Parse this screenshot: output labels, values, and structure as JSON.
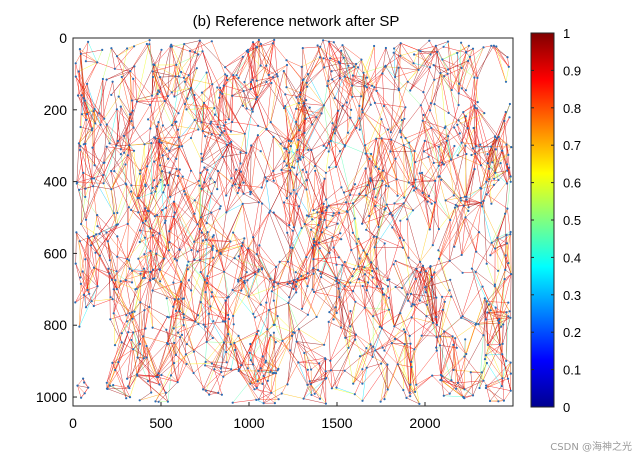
{
  "chart_data": {
    "type": "scatter",
    "title": "(b) Reference network after SP",
    "subtype": "network graph (nodes + weighted edges)",
    "xlim": [
      0,
      2500
    ],
    "ylim": [
      0,
      1025
    ],
    "y_axis_direction": "reversed",
    "x_ticks": [
      0,
      500,
      1000,
      1500,
      2000
    ],
    "x_tick_labels": [
      "0",
      "500",
      "1000",
      "1500",
      "2000"
    ],
    "y_ticks": [
      0,
      200,
      400,
      600,
      800,
      1000
    ],
    "y_tick_labels": [
      "0",
      "200",
      "400",
      "600",
      "800",
      "1000"
    ],
    "node_color": "#2b6cb3",
    "edge_colormap": "jet",
    "colorbar": {
      "range": [
        0,
        1
      ],
      "ticks": [
        0,
        0.1,
        0.2,
        0.3,
        0.4,
        0.5,
        0.6,
        0.7,
        0.8,
        0.9,
        1
      ],
      "tick_labels": [
        "0",
        "0.1",
        "0.2",
        "0.3",
        "0.4",
        "0.5",
        "0.6",
        "0.7",
        "0.8",
        "0.9",
        "1"
      ],
      "stops": [
        "#00008f",
        "#0000ff",
        "#0080ff",
        "#00ffff",
        "#80ff80",
        "#ffff00",
        "#ff8000",
        "#ff0000",
        "#800000"
      ]
    },
    "holes": [
      {
        "x": 1450,
        "y": 670,
        "r": 35
      },
      {
        "x": 2380,
        "y": 120,
        "r": 80
      },
      {
        "x": 120,
        "y": 850,
        "r": 90
      },
      {
        "x": 1100,
        "y": 550,
        "r": 40
      },
      {
        "x": 1680,
        "y": 250,
        "r": 45
      },
      {
        "x": 2200,
        "y": 380,
        "r": 50
      },
      {
        "x": 640,
        "y": 960,
        "r": 45
      },
      {
        "x": 1250,
        "y": 1000,
        "r": 40
      },
      {
        "x": 300,
        "y": 150,
        "r": 35
      },
      {
        "x": 2280,
        "y": 700,
        "r": 45
      },
      {
        "x": 1180,
        "y": 30,
        "r": 40
      },
      {
        "x": 2000,
        "y": 1000,
        "r": 35
      },
      {
        "x": 560,
        "y": 280,
        "r": 30
      },
      {
        "x": 2100,
        "y": 160,
        "r": 30
      }
    ],
    "node_count": 1400,
    "edge_count": 3600
  },
  "watermark": "CSDN @海神之光"
}
